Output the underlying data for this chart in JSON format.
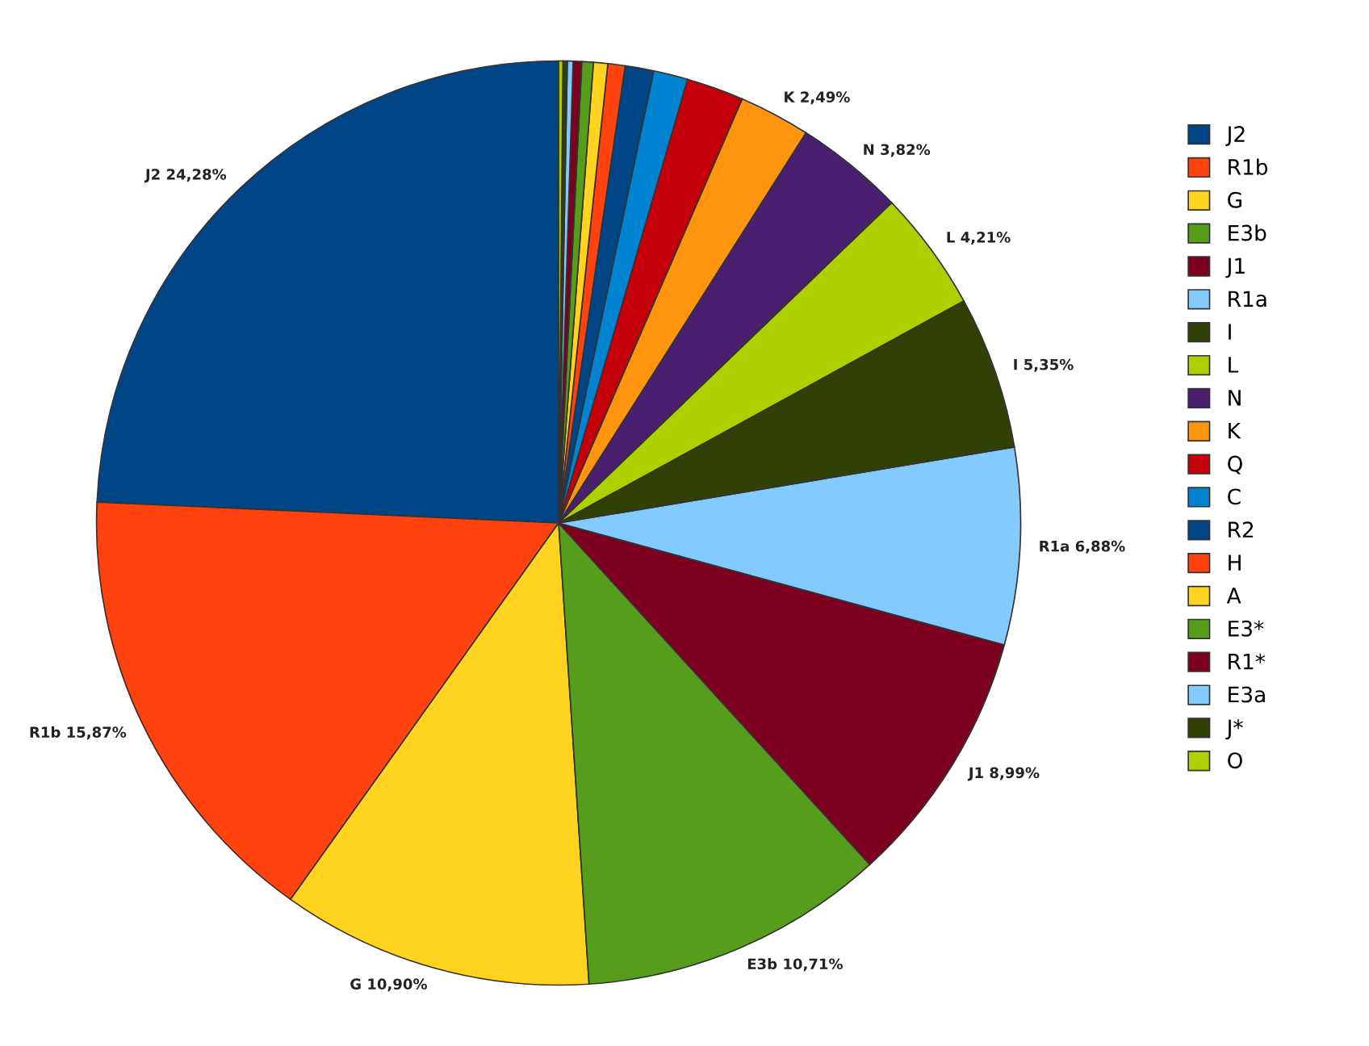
{
  "chart_data": {
    "type": "pie",
    "categories": [
      "J2",
      "R1b",
      "G",
      "E3b",
      "J1",
      "R1a",
      "I",
      "L",
      "N",
      "K",
      "Q",
      "C",
      "R2",
      "H",
      "A",
      "E3*",
      "R1*",
      "E3a",
      "J*",
      "O"
    ],
    "values": [
      24.28,
      15.87,
      10.9,
      10.71,
      8.99,
      6.88,
      5.35,
      4.21,
      3.82,
      2.49,
      2.0,
      1.2,
      1.0,
      0.6,
      0.5,
      0.4,
      0.3,
      0.2,
      0.15,
      0.15
    ],
    "value_labels": [
      "J2 24,28%",
      "R1b 15,87%",
      "G 10,90%",
      "E3b 10,71%",
      "J1 8,99%",
      "R1a 6,88%",
      "I 5,35%",
      "L 4,21%",
      "N 3,82%",
      "K 2,49%",
      null,
      null,
      null,
      null,
      null,
      null,
      null,
      null,
      null,
      null
    ],
    "colors": [
      "#004586",
      "#ff420e",
      "#ffd320",
      "#579d1c",
      "#7e0021",
      "#83caff",
      "#314004",
      "#aecf00",
      "#4b1f6f",
      "#ff950e",
      "#c5000b",
      "#0084d1",
      "#004586",
      "#ff420e",
      "#ffd320",
      "#579d1c",
      "#7e0021",
      "#83caff",
      "#314004",
      "#aecf00"
    ],
    "legend": "right"
  }
}
